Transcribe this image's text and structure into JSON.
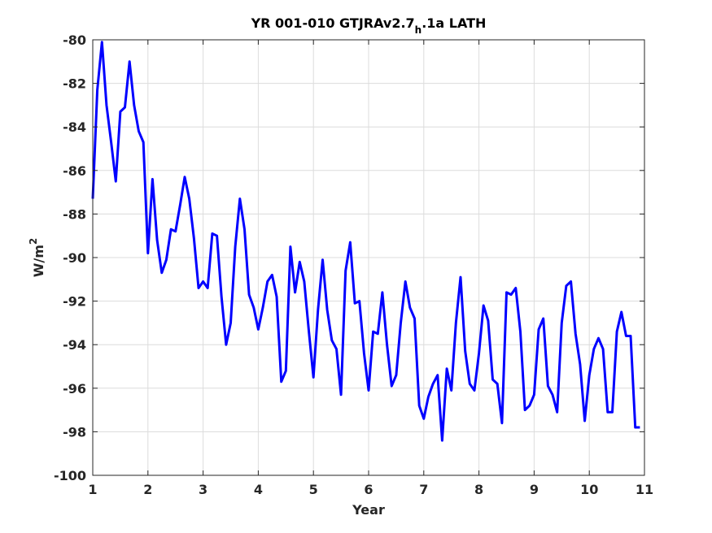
{
  "chart_data": {
    "type": "line",
    "title": {
      "main": "YR 001-010 GTJRAv2.7",
      "subscript": "h",
      "suffix": ".1a LATH"
    },
    "xlabel": "Year",
    "ylabel": {
      "base": "W/m",
      "superscript": "2"
    },
    "xlim": [
      1,
      11
    ],
    "ylim": [
      -100,
      -80
    ],
    "xticks": [
      1,
      2,
      3,
      4,
      5,
      6,
      7,
      8,
      9,
      10,
      11
    ],
    "xtick_labels": [
      "1",
      "2",
      "3",
      "4",
      "5",
      "6",
      "7",
      "8",
      "9",
      "10",
      "11"
    ],
    "yticks": [
      -100,
      -98,
      -96,
      -94,
      -92,
      -90,
      -88,
      -86,
      -84,
      -82,
      -80
    ],
    "ytick_labels": [
      "-100",
      "-98",
      "-96",
      "-94",
      "-92",
      "-90",
      "-88",
      "-86",
      "-84",
      "-82",
      "-80"
    ],
    "grid": true,
    "series": [
      {
        "color": "#0000ff",
        "x": [
          1.0,
          1.083,
          1.167,
          1.25,
          1.333,
          1.417,
          1.5,
          1.583,
          1.667,
          1.75,
          1.833,
          1.917,
          2.0,
          2.083,
          2.167,
          2.25,
          2.333,
          2.417,
          2.5,
          2.583,
          2.667,
          2.75,
          2.833,
          2.917,
          3.0,
          3.083,
          3.167,
          3.25,
          3.333,
          3.417,
          3.5,
          3.583,
          3.667,
          3.75,
          3.833,
          3.917,
          4.0,
          4.083,
          4.167,
          4.25,
          4.333,
          4.417,
          4.5,
          4.583,
          4.667,
          4.75,
          4.833,
          4.917,
          5.0,
          5.083,
          5.167,
          5.25,
          5.333,
          5.417,
          5.5,
          5.583,
          5.667,
          5.75,
          5.833,
          5.917,
          6.0,
          6.083,
          6.167,
          6.25,
          6.333,
          6.417,
          6.5,
          6.583,
          6.667,
          6.75,
          6.833,
          6.917,
          7.0,
          7.083,
          7.167,
          7.25,
          7.333,
          7.417,
          7.5,
          7.583,
          7.667,
          7.75,
          7.833,
          7.917,
          8.0,
          8.083,
          8.167,
          8.25,
          8.333,
          8.417,
          8.5,
          8.583,
          8.667,
          8.75,
          8.833,
          8.917,
          9.0,
          9.083,
          9.167,
          9.25,
          9.333,
          9.417,
          9.5,
          9.583,
          9.667,
          9.75,
          9.833,
          9.917,
          10.0,
          10.083,
          10.167,
          10.25,
          10.333,
          10.417,
          10.5,
          10.583,
          10.667,
          10.75,
          10.833,
          10.917
        ],
        "y": [
          -87.3,
          -82.3,
          -80.1,
          -83.0,
          -84.7,
          -86.5,
          -83.3,
          -83.1,
          -81.0,
          -83.0,
          -84.2,
          -84.7,
          -89.8,
          -86.4,
          -89.2,
          -90.7,
          -90.1,
          -88.7,
          -88.8,
          -87.6,
          -86.3,
          -87.3,
          -89.1,
          -91.4,
          -91.1,
          -91.4,
          -88.9,
          -89.0,
          -91.8,
          -94.0,
          -93.0,
          -89.5,
          -87.3,
          -88.7,
          -91.7,
          -92.3,
          -93.3,
          -92.3,
          -91.1,
          -90.8,
          -91.8,
          -95.7,
          -95.2,
          -89.5,
          -91.6,
          -90.2,
          -91.1,
          -93.4,
          -95.5,
          -92.4,
          -90.1,
          -92.4,
          -93.8,
          -94.2,
          -96.3,
          -90.6,
          -89.3,
          -92.1,
          -92.0,
          -94.4,
          -96.1,
          -93.4,
          -93.5,
          -91.6,
          -94.0,
          -95.9,
          -95.4,
          -93.0,
          -91.1,
          -92.3,
          -92.8,
          -96.8,
          -97.4,
          -96.4,
          -95.8,
          -95.4,
          -98.4,
          -95.1,
          -96.1,
          -93.0,
          -90.9,
          -94.3,
          -95.8,
          -96.1,
          -94.4,
          -92.2,
          -92.9,
          -95.6,
          -95.8,
          -97.6,
          -91.6,
          -91.7,
          -91.4,
          -93.4,
          -97.0,
          -96.8,
          -96.3,
          -93.3,
          -92.8,
          -95.9,
          -96.3,
          -97.1,
          -93.0,
          -91.3,
          -91.1,
          -93.5,
          -94.9,
          -97.5,
          -95.4,
          -94.2,
          -93.7,
          -94.2,
          -97.1,
          -97.1,
          -93.4,
          -92.5,
          -93.6,
          -93.6,
          -97.8,
          -97.8
        ]
      }
    ]
  }
}
